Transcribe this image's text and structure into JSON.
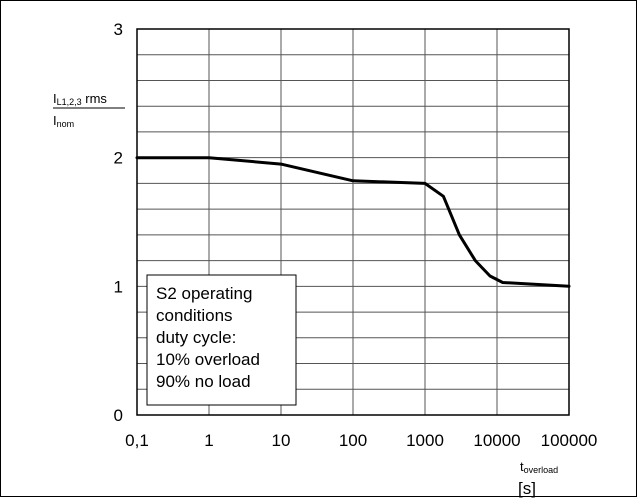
{
  "chart_data": {
    "type": "line",
    "title": "",
    "x_scale": "log",
    "xlim": [
      0.1,
      100000
    ],
    "ylim": [
      0,
      3
    ],
    "grid": true,
    "x_ticks": [
      "0,1",
      "1",
      "10",
      "100",
      "1000",
      "10000",
      "100000"
    ],
    "y_ticks": [
      "0",
      "1",
      "2",
      "3"
    ],
    "ylabel": {
      "num_main": "I",
      "num_sub": "L1,2,3",
      "num_suffix": " rms",
      "den_main": "I",
      "den_sub": "nom"
    },
    "xlabel": {
      "main": "t",
      "sub": "overload",
      "unit": "[s]"
    },
    "annotation": [
      "S2 operating",
      "conditions",
      "duty cycle:",
      "10% overload",
      "90% no load"
    ],
    "series": [
      {
        "x": [
          0.1,
          1,
          10,
          100,
          1000,
          1800,
          3000,
          5000,
          8000,
          12000,
          100000
        ],
        "y": [
          2.0,
          2.0,
          1.95,
          1.82,
          1.8,
          1.7,
          1.4,
          1.2,
          1.08,
          1.03,
          1.0
        ]
      }
    ],
    "colors": {
      "line": "#000000",
      "grid": "#555555",
      "axes": "#000000"
    }
  }
}
